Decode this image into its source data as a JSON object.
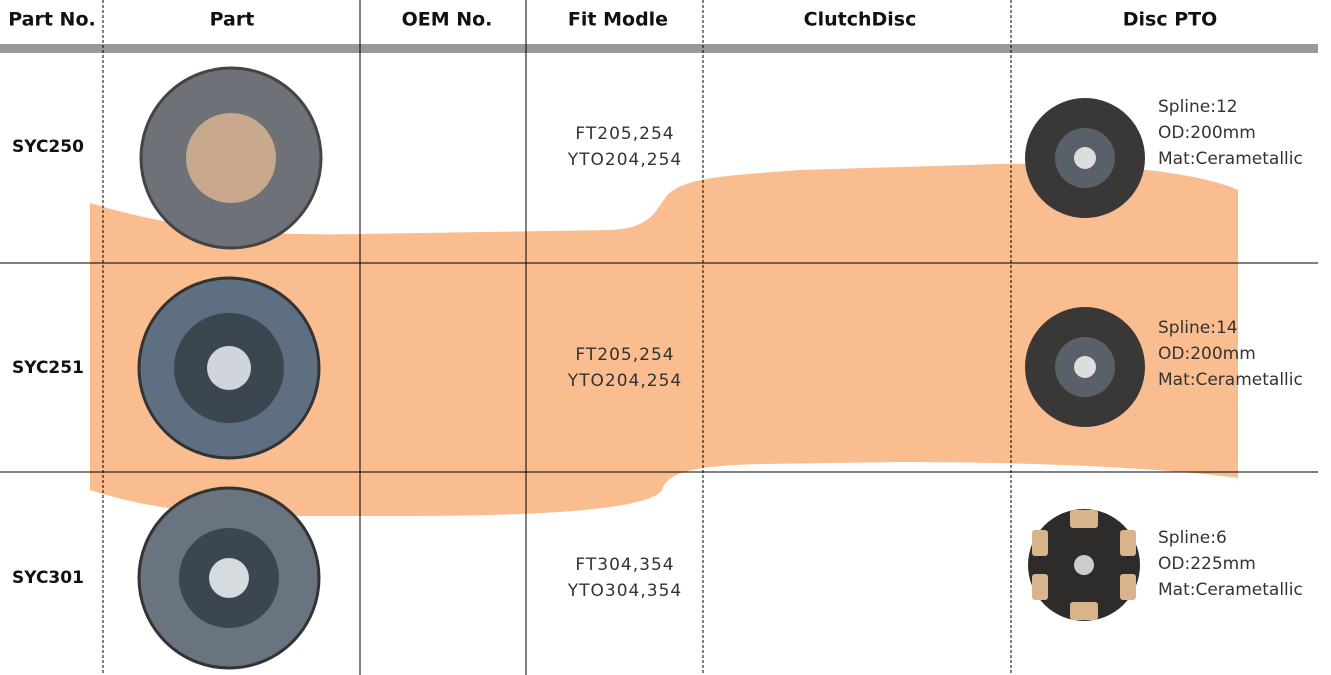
{
  "table": {
    "headers": [
      "Part No.",
      "Part",
      "OEM No.",
      "Fit Modle",
      "ClutchDisc",
      "Disc PTO"
    ],
    "rows": [
      {
        "part_no": "SYC250",
        "fit_model": [
          "FT205,254",
          "YTO204,254"
        ],
        "disc_pto": [
          "Spline:12",
          "OD:200mm",
          "Mat:Cerametallic"
        ]
      },
      {
        "part_no": "SYC251",
        "fit_model": [
          "FT205,254",
          "YTO204,254"
        ],
        "disc_pto": [
          "Spline:14",
          "OD:200mm",
          "Mat:Cerametallic"
        ]
      },
      {
        "part_no": "SYC301",
        "fit_model": [
          "FT304,354",
          "YTO304,354"
        ],
        "disc_pto": [
          "Spline:6",
          "OD:225mm",
          "Mat:Cerametallic"
        ]
      }
    ]
  }
}
